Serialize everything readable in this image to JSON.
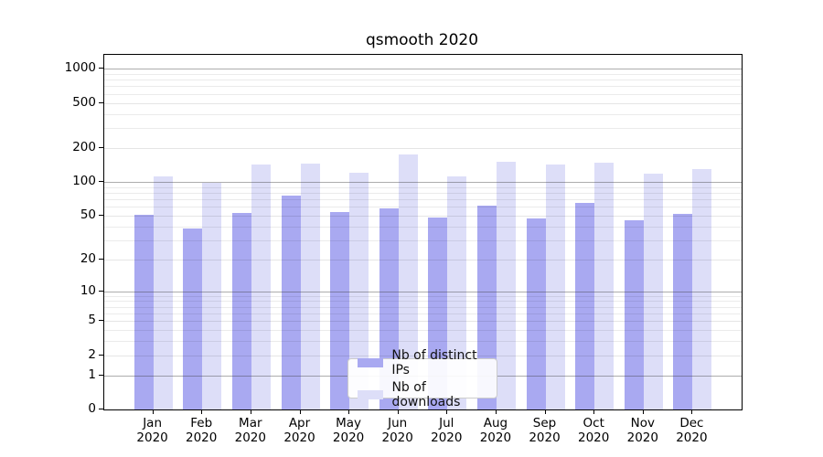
{
  "title": "qsmooth 2020",
  "chart_data": {
    "type": "bar",
    "title": "qsmooth 2020",
    "categories": [
      "Jan",
      "Feb",
      "Mar",
      "Apr",
      "May",
      "Jun",
      "Jul",
      "Aug",
      "Sep",
      "Oct",
      "Nov",
      "Dec"
    ],
    "x_year_label": "2020",
    "series": [
      {
        "name": "Nb of distinct IPs",
        "color": "#a9a9f1",
        "values": [
          51,
          38,
          53,
          76,
          54,
          58,
          48,
          62,
          47,
          65,
          45,
          52
        ]
      },
      {
        "name": "Nb of downloads",
        "color": "#dddef8",
        "values": [
          112,
          98,
          142,
          145,
          121,
          174,
          112,
          151,
          144,
          148,
          119,
          130
        ]
      }
    ],
    "xlabel": "",
    "ylabel": "",
    "y_scale": "log10(value+1)",
    "y_ticks": [
      0,
      1,
      2,
      5,
      10,
      20,
      50,
      100,
      200,
      500,
      1000
    ],
    "y_minor_ticks": [
      3,
      4,
      6,
      7,
      8,
      9,
      30,
      40,
      60,
      70,
      80,
      90,
      300,
      400,
      600,
      700,
      800,
      900
    ],
    "ylim": [
      0,
      1327
    ],
    "grid": true,
    "legend_position": "lower center",
    "colors": {
      "spine": "#000000",
      "grid_major": "#9a9a9a",
      "grid_minor": "#e8e8e8",
      "background": "#ffffff",
      "text": "#000000"
    }
  }
}
